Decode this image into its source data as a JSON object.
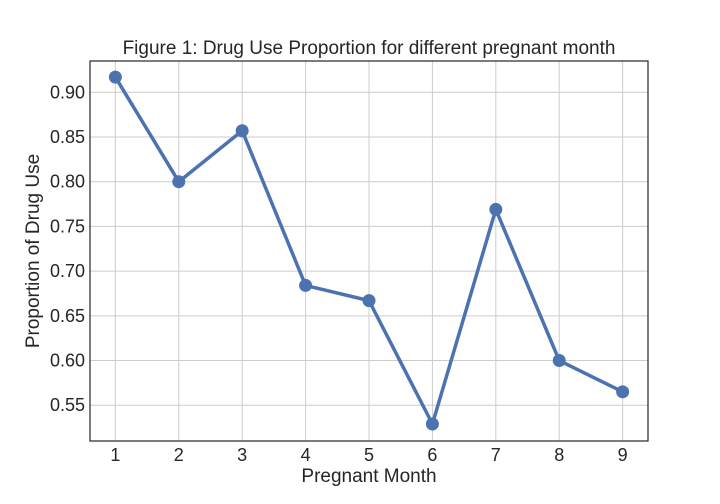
{
  "chart_data": {
    "type": "line",
    "title": "Figure 1: Drug Use Proportion for different pregnant month",
    "xlabel": "Pregnant Month",
    "ylabel": "Proportion of Drug Use",
    "x": [
      1,
      2,
      3,
      4,
      5,
      6,
      7,
      8,
      9
    ],
    "values": [
      0.917,
      0.8,
      0.857,
      0.684,
      0.667,
      0.529,
      0.769,
      0.6,
      0.565
    ],
    "xticks": [
      "1",
      "2",
      "3",
      "4",
      "5",
      "6",
      "7",
      "8",
      "9"
    ],
    "yticks": [
      "0.55",
      "0.60",
      "0.65",
      "0.70",
      "0.75",
      "0.80",
      "0.85",
      "0.90"
    ],
    "xlim": [
      0.6,
      9.4
    ],
    "ylim": [
      0.51,
      0.935
    ],
    "grid": true,
    "line_color": "#4c72b0",
    "marker": "circle"
  }
}
